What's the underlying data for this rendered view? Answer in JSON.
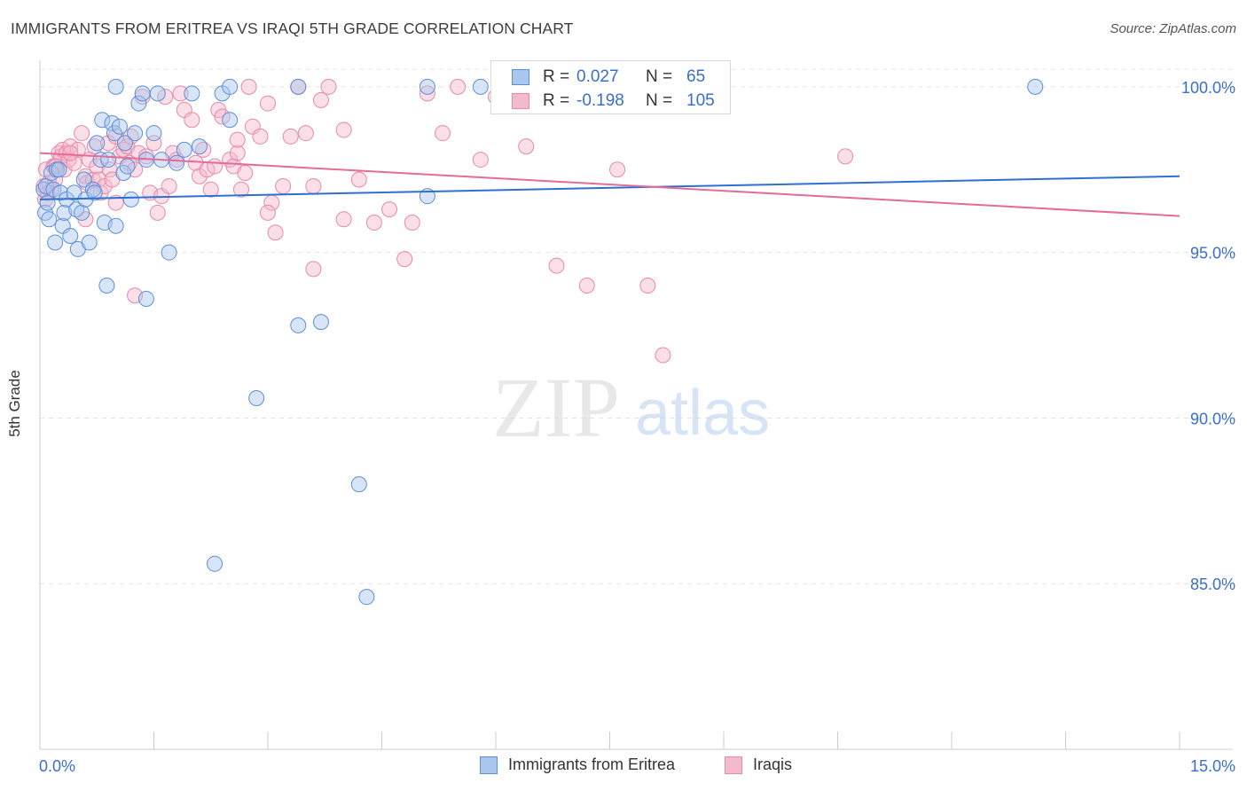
{
  "title": "IMMIGRANTS FROM ERITREA VS IRAQI 5TH GRADE CORRELATION CHART",
  "source": "Source: ZipAtlas.com",
  "watermark": {
    "zip": "ZIP",
    "atlas": "atlas"
  },
  "colors": {
    "blue_fill": "#a9c6ee",
    "blue_stroke": "#5d8fd8",
    "blue_line": "#2f6fd1",
    "pink_fill": "#f5b9cd",
    "pink_stroke": "#e889a8",
    "pink_line": "#e56b98",
    "tick_text": "#3a6fc9",
    "grid": "#e4e4e4"
  },
  "legend": {
    "rows": [
      {
        "r_label": "R =",
        "r_value": "0.027",
        "n_label": "N =",
        "n_value": "65"
      },
      {
        "r_label": "R =",
        "r_value": "-0.198",
        "n_label": "N =",
        "n_value": "105"
      }
    ]
  },
  "bottom_legend": {
    "series1": "Immigrants from Eritrea",
    "series2": "Iraqis"
  },
  "chart_data": {
    "type": "scatter",
    "title": "IMMIGRANTS FROM ERITREA VS IRAQI 5TH GRADE CORRELATION CHART",
    "xlabel": "",
    "ylabel": "5th Grade",
    "xlim": [
      0,
      15
    ],
    "ylim": [
      80,
      100.8
    ],
    "x_tick_labels": [
      "0.0%",
      "15.0%"
    ],
    "y_ticks": [
      100,
      95,
      90,
      85
    ],
    "y_tick_labels": [
      "100.0%",
      "95.0%",
      "90.0%",
      "85.0%"
    ],
    "grid": "horizontal dashed",
    "legend_position": "top-center",
    "series": [
      {
        "name": "Immigrants from Eritrea",
        "color": "#a9c6ee",
        "trend": {
          "x": [
            0,
            15
          ],
          "y": [
            96.6,
            97.3
          ]
        },
        "points": [
          [
            0.05,
            96.9
          ],
          [
            0.07,
            96.2
          ],
          [
            0.08,
            97.0
          ],
          [
            0.1,
            96.5
          ],
          [
            0.12,
            96.0
          ],
          [
            0.15,
            97.4
          ],
          [
            0.18,
            96.9
          ],
          [
            0.2,
            95.3
          ],
          [
            0.22,
            97.5
          ],
          [
            0.25,
            97.5
          ],
          [
            0.27,
            96.8
          ],
          [
            0.3,
            95.8
          ],
          [
            0.32,
            96.2
          ],
          [
            0.35,
            96.6
          ],
          [
            0.4,
            95.5
          ],
          [
            0.45,
            96.8
          ],
          [
            0.48,
            96.3
          ],
          [
            0.5,
            95.1
          ],
          [
            0.55,
            96.2
          ],
          [
            0.58,
            97.2
          ],
          [
            0.6,
            96.6
          ],
          [
            0.65,
            95.3
          ],
          [
            0.7,
            96.9
          ],
          [
            0.72,
            96.8
          ],
          [
            0.75,
            98.3
          ],
          [
            0.8,
            97.8
          ],
          [
            0.82,
            99.0
          ],
          [
            0.85,
            95.9
          ],
          [
            0.88,
            94.0
          ],
          [
            0.9,
            97.8
          ],
          [
            0.95,
            98.9
          ],
          [
            0.98,
            98.6
          ],
          [
            1.0,
            95.8
          ],
          [
            1.05,
            98.8
          ],
          [
            1.1,
            97.4
          ],
          [
            1.12,
            98.3
          ],
          [
            1.15,
            97.6
          ],
          [
            1.2,
            96.6
          ],
          [
            1.25,
            98.6
          ],
          [
            1.3,
            99.5
          ],
          [
            1.35,
            99.8
          ],
          [
            1.4,
            97.8
          ],
          [
            1.5,
            98.6
          ],
          [
            1.55,
            99.8
          ],
          [
            1.6,
            97.8
          ],
          [
            1.7,
            95.0
          ],
          [
            1.8,
            97.7
          ],
          [
            1.9,
            98.1
          ],
          [
            2.0,
            99.8
          ],
          [
            2.1,
            98.2
          ],
          [
            2.4,
            99.8
          ],
          [
            2.5,
            99.0
          ],
          [
            1.0,
            100.0
          ],
          [
            2.5,
            100.0
          ],
          [
            3.4,
            100.0
          ],
          [
            5.1,
            100.0
          ],
          [
            5.8,
            100.0
          ],
          [
            6.5,
            100.0
          ],
          [
            13.1,
            100.0
          ],
          [
            1.4,
            93.6
          ],
          [
            3.4,
            92.8
          ],
          [
            3.7,
            92.9
          ],
          [
            2.85,
            90.6
          ],
          [
            4.2,
            88.0
          ],
          [
            2.3,
            85.6
          ],
          [
            4.3,
            84.6
          ],
          [
            5.1,
            96.7
          ]
        ]
      },
      {
        "name": "Iraqis",
        "color": "#f5b9cd",
        "trend": {
          "x": [
            0,
            15
          ],
          "y": [
            98.0,
            96.1
          ]
        },
        "points": [
          [
            0.05,
            97.0
          ],
          [
            0.07,
            96.6
          ],
          [
            0.08,
            97.5
          ],
          [
            0.1,
            96.8
          ],
          [
            0.12,
            97.1
          ],
          [
            0.15,
            96.9
          ],
          [
            0.18,
            97.6
          ],
          [
            0.2,
            97.2
          ],
          [
            0.22,
            97.6
          ],
          [
            0.25,
            98.0
          ],
          [
            0.28,
            97.9
          ],
          [
            0.3,
            98.1
          ],
          [
            0.32,
            97.5
          ],
          [
            0.35,
            98.0
          ],
          [
            0.38,
            97.8
          ],
          [
            0.4,
            98.2
          ],
          [
            0.45,
            97.7
          ],
          [
            0.5,
            98.1
          ],
          [
            0.55,
            98.6
          ],
          [
            0.6,
            97.3
          ],
          [
            0.62,
            97.1
          ],
          [
            0.65,
            97.8
          ],
          [
            0.7,
            97.2
          ],
          [
            0.72,
            98.2
          ],
          [
            0.75,
            97.6
          ],
          [
            0.78,
            97.2
          ],
          [
            0.8,
            96.8
          ],
          [
            0.85,
            97.0
          ],
          [
            0.9,
            98.3
          ],
          [
            0.92,
            97.5
          ],
          [
            0.95,
            97.2
          ],
          [
            1.0,
            98.5
          ],
          [
            1.05,
            97.9
          ],
          [
            1.1,
            98.1
          ],
          [
            1.15,
            98.2
          ],
          [
            1.18,
            97.7
          ],
          [
            1.2,
            98.5
          ],
          [
            1.25,
            97.5
          ],
          [
            1.3,
            98.0
          ],
          [
            1.35,
            99.7
          ],
          [
            1.4,
            97.9
          ],
          [
            1.45,
            96.8
          ],
          [
            1.5,
            98.3
          ],
          [
            1.55,
            96.2
          ],
          [
            1.6,
            96.7
          ],
          [
            1.65,
            99.7
          ],
          [
            1.7,
            97.0
          ],
          [
            1.75,
            98.0
          ],
          [
            1.8,
            97.8
          ],
          [
            1.85,
            99.8
          ],
          [
            1.9,
            99.3
          ],
          [
            2.0,
            99.0
          ],
          [
            2.05,
            97.7
          ],
          [
            2.1,
            97.3
          ],
          [
            2.15,
            98.1
          ],
          [
            2.2,
            97.5
          ],
          [
            2.25,
            96.9
          ],
          [
            2.3,
            97.6
          ],
          [
            2.35,
            99.3
          ],
          [
            2.4,
            99.1
          ],
          [
            2.5,
            97.8
          ],
          [
            2.55,
            97.6
          ],
          [
            2.6,
            98.0
          ],
          [
            2.65,
            96.9
          ],
          [
            2.7,
            97.4
          ],
          [
            2.75,
            100.0
          ],
          [
            2.8,
            98.8
          ],
          [
            2.9,
            98.5
          ],
          [
            3.0,
            99.5
          ],
          [
            3.05,
            96.5
          ],
          [
            3.1,
            95.6
          ],
          [
            3.2,
            97.0
          ],
          [
            3.3,
            98.5
          ],
          [
            3.4,
            100.0
          ],
          [
            3.5,
            98.6
          ],
          [
            3.6,
            97.0
          ],
          [
            3.7,
            99.6
          ],
          [
            3.8,
            100.0
          ],
          [
            4.0,
            96.0
          ],
          [
            4.2,
            97.2
          ],
          [
            4.4,
            95.9
          ],
          [
            4.6,
            96.3
          ],
          [
            4.8,
            94.8
          ],
          [
            4.9,
            95.9
          ],
          [
            5.1,
            99.8
          ],
          [
            5.3,
            98.6
          ],
          [
            5.5,
            100.0
          ],
          [
            5.8,
            97.8
          ],
          [
            6.0,
            99.7
          ],
          [
            6.2,
            100.0
          ],
          [
            6.4,
            98.2
          ],
          [
            6.8,
            94.6
          ],
          [
            7.2,
            94.0
          ],
          [
            7.6,
            97.5
          ],
          [
            8.0,
            94.0
          ],
          [
            8.2,
            91.9
          ],
          [
            10.6,
            97.9
          ],
          [
            3.6,
            94.5
          ],
          [
            4.0,
            98.7
          ],
          [
            1.25,
            93.7
          ],
          [
            0.2,
            97.6
          ],
          [
            0.6,
            96.0
          ],
          [
            0.4,
            98.0
          ],
          [
            1.0,
            96.5
          ],
          [
            2.6,
            98.4
          ],
          [
            3.0,
            96.2
          ]
        ]
      }
    ]
  }
}
